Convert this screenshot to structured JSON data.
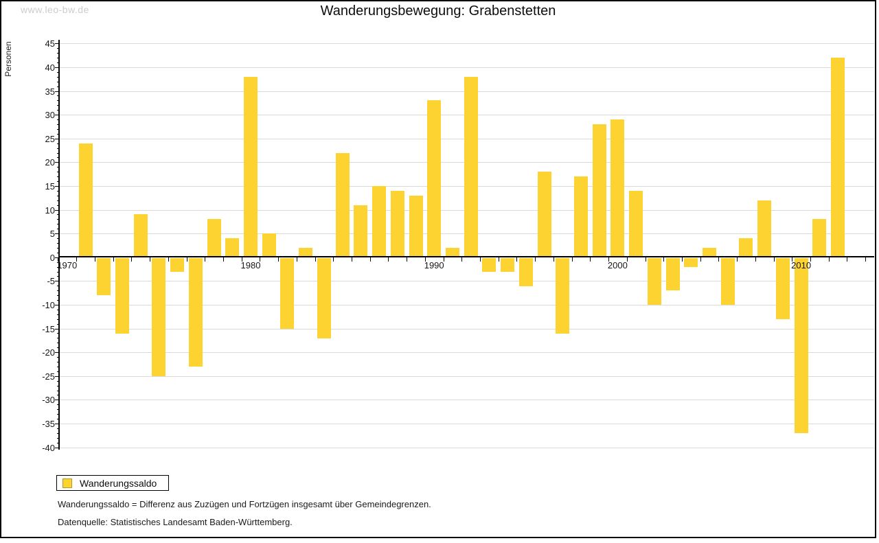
{
  "watermark": "www.leo-bw.de",
  "title": "Wanderungsbewegung: Grabenstetten",
  "y_axis": {
    "label": "Personen",
    "tick_values": [
      45,
      40,
      35,
      30,
      25,
      20,
      15,
      10,
      5,
      0,
      -5,
      -10,
      -15,
      -20,
      -25,
      -30,
      -35,
      -40
    ]
  },
  "x_axis": {
    "tick_labels": [
      "1970",
      "1980",
      "1990",
      "2000",
      "2010"
    ]
  },
  "legend": {
    "items": [
      {
        "label": "Wanderungssaldo",
        "color": "#fcd330"
      }
    ]
  },
  "footnotes": [
    "Wanderungssaldo = Differenz aus Zuzügen und Fortzügen insgesamt über Gemeindegrenzen.",
    "Datenquelle: Statistisches Landesamt Baden-Württemberg."
  ],
  "chart_data": {
    "type": "bar",
    "title": "Wanderungsbewegung: Grabenstetten",
    "xlabel": "",
    "ylabel": "Personen",
    "ylim": [
      -40,
      45
    ],
    "xlim": [
      1969.5,
      2013.5
    ],
    "y_tick_step": 5,
    "grid": true,
    "legend_position": "bottom-left",
    "bar_color": "#fcd330",
    "series_name": "Wanderungssaldo",
    "categories": [
      1971,
      1972,
      1973,
      1974,
      1975,
      1976,
      1977,
      1978,
      1979,
      1980,
      1981,
      1982,
      1983,
      1984,
      1985,
      1986,
      1987,
      1988,
      1989,
      1990,
      1991,
      1992,
      1993,
      1994,
      1995,
      1996,
      1997,
      1998,
      1999,
      2000,
      2001,
      2002,
      2003,
      2004,
      2005,
      2006,
      2007,
      2008,
      2009,
      2010,
      2011,
      2012
    ],
    "values": [
      24,
      -8,
      -16,
      9,
      -25,
      -3,
      -23,
      8,
      4,
      38,
      5,
      -15,
      2,
      -17,
      22,
      11,
      15,
      14,
      13,
      33,
      2,
      38,
      -3,
      -3,
      -6,
      18,
      -16,
      17,
      28,
      29,
      14,
      -10,
      -7,
      -2,
      2,
      -10,
      4,
      12,
      -13,
      -37,
      8,
      42
    ]
  }
}
